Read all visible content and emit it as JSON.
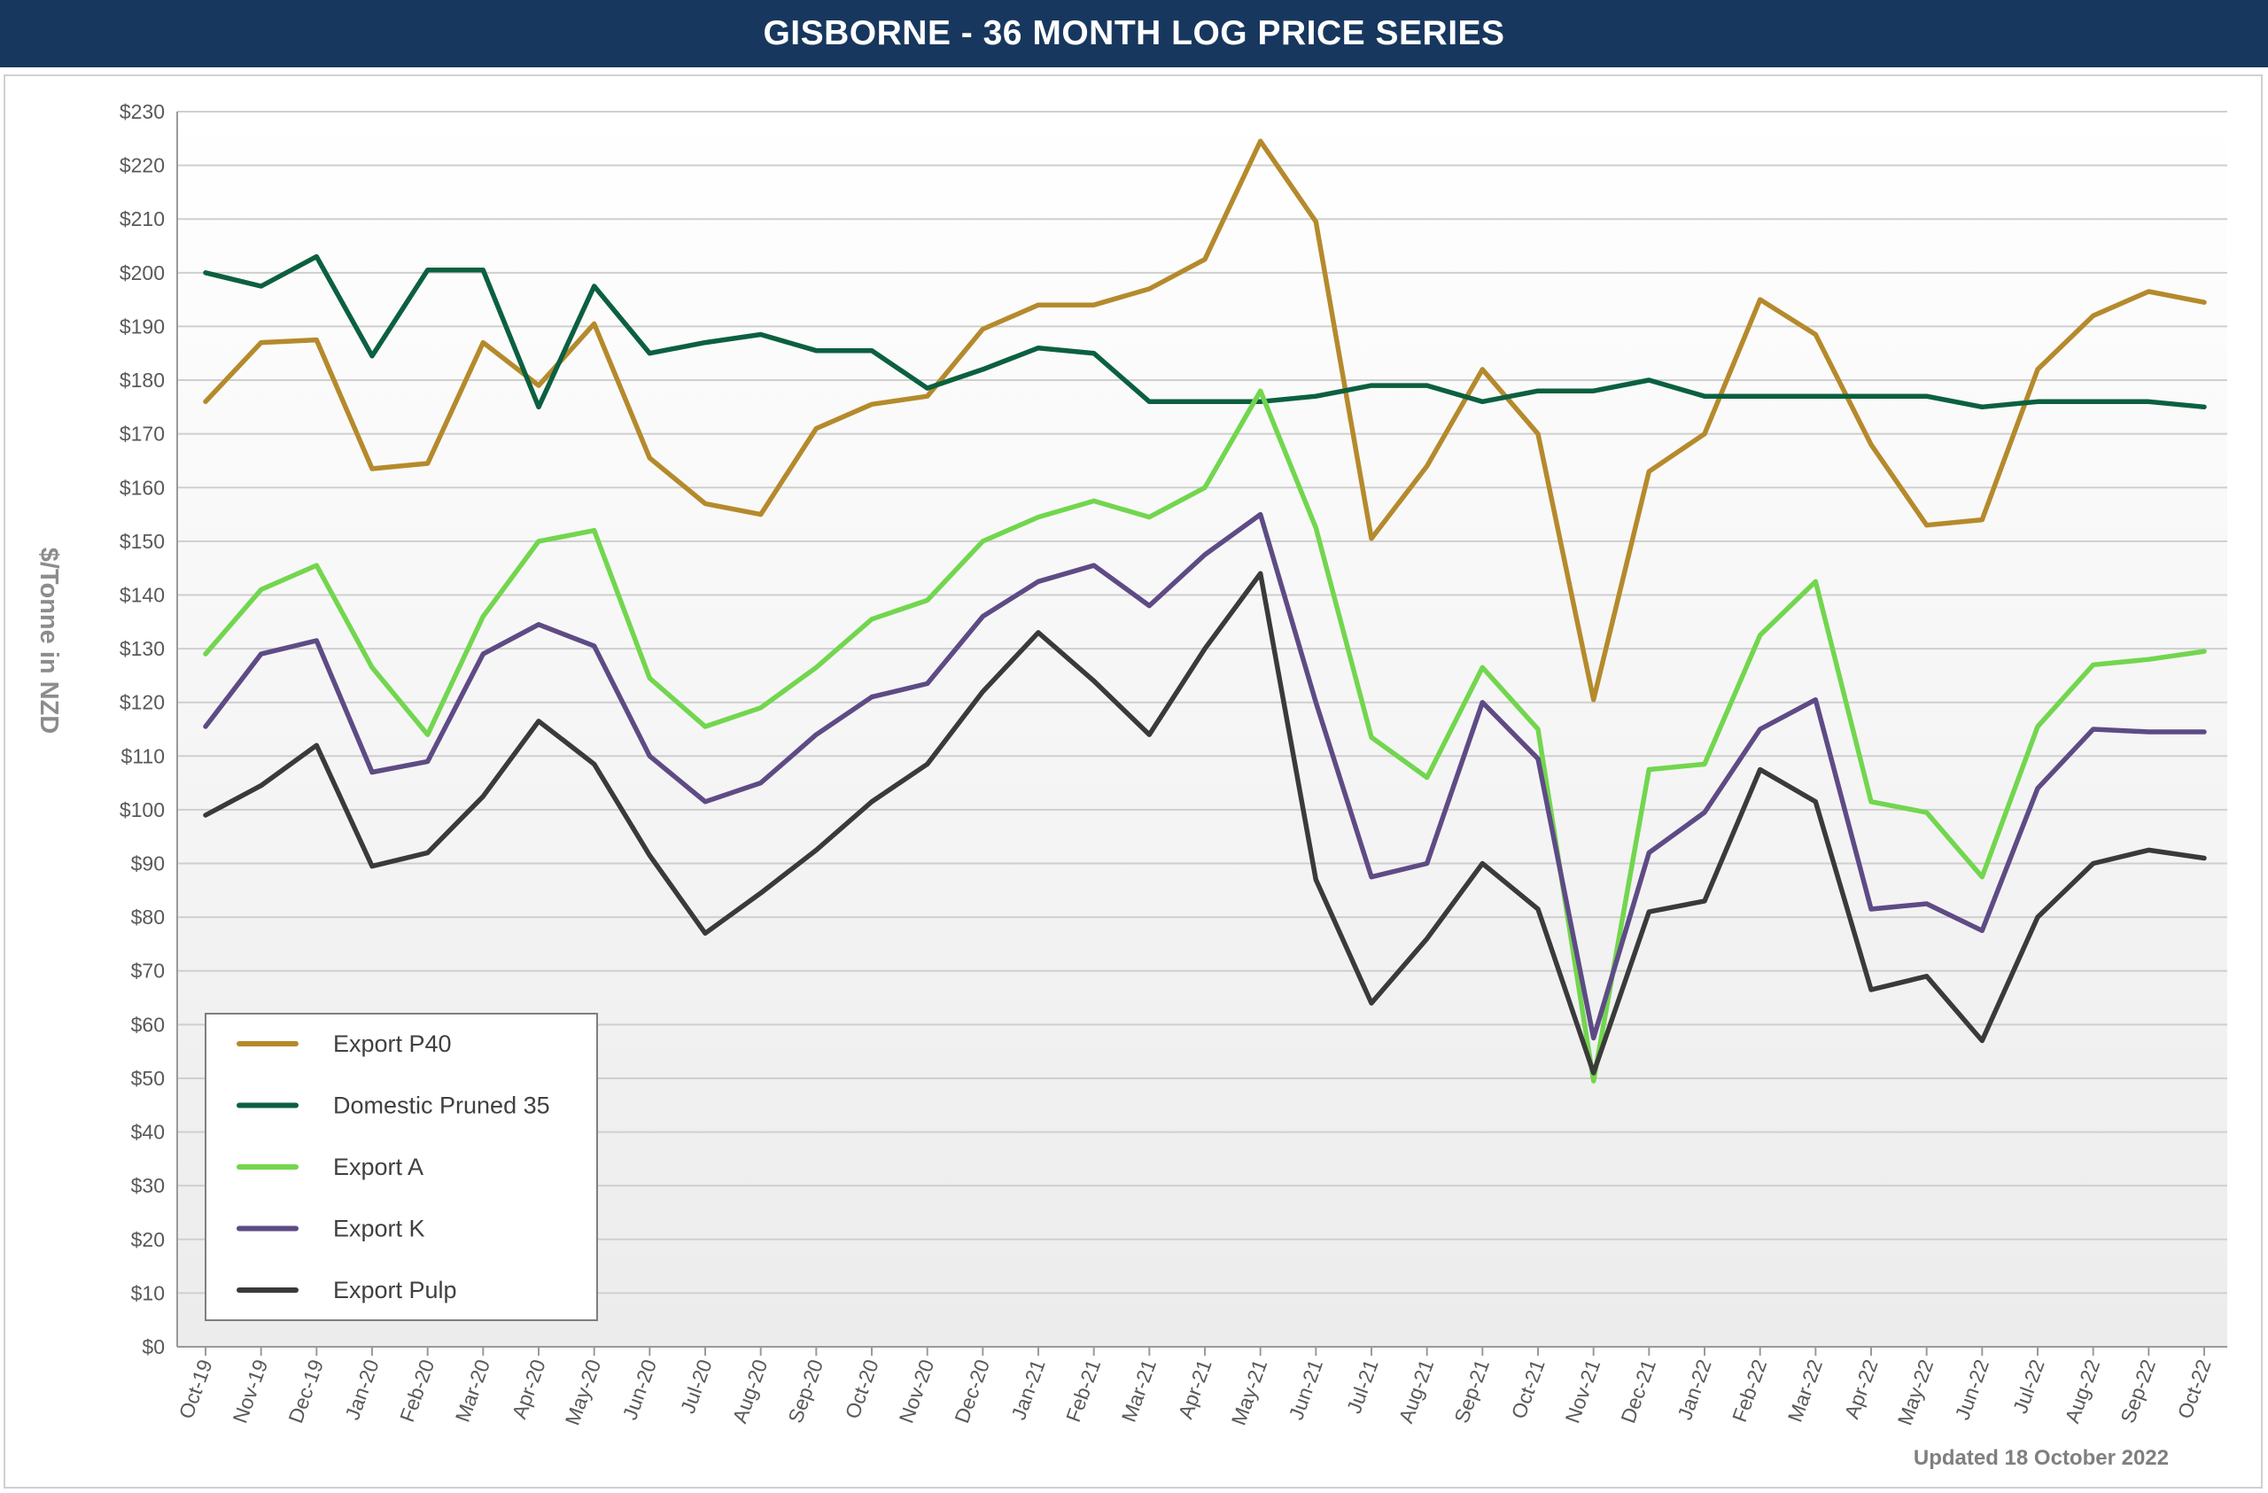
{
  "title": "GISBORNE - 36 MONTH LOG PRICE SERIES",
  "footer": "Updated 18 October 2022",
  "chart_data": {
    "type": "line",
    "title": "GISBORNE - 36 MONTH LOG PRICE SERIES",
    "xlabel": "",
    "ylabel": "$/Tonne in NZD",
    "ylim": [
      0,
      230
    ],
    "ytick_step": 10,
    "ytick_prefix": "$",
    "grid": true,
    "legend_position": "bottom-left",
    "categories": [
      "Oct-19",
      "Nov-19",
      "Dec-19",
      "Jan-20",
      "Feb-20",
      "Mar-20",
      "Apr-20",
      "May-20",
      "Jun-20",
      "Jul-20",
      "Aug-20",
      "Sep-20",
      "Oct-20",
      "Nov-20",
      "Dec-20",
      "Jan-21",
      "Feb-21",
      "Mar-21",
      "Apr-21",
      "May-21",
      "Jun-21",
      "Jul-21",
      "Aug-21",
      "Sep-21",
      "Oct-21",
      "Nov-21",
      "Dec-21",
      "Jan-22",
      "Feb-22",
      "Mar-22",
      "Apr-22",
      "May-22",
      "Jun-22",
      "Jul-22",
      "Aug-22",
      "Sep-22",
      "Oct-22"
    ],
    "series": [
      {
        "name": "Export P40",
        "color": "#b58a2c",
        "values": [
          176,
          187,
          187.5,
          163.5,
          164.5,
          187,
          179,
          190.5,
          165.5,
          157,
          155,
          171,
          175.5,
          177,
          189.5,
          194,
          194,
          197,
          202.5,
          224.5,
          209.5,
          150.5,
          164,
          182,
          170,
          120.5,
          163,
          170,
          195,
          188.5,
          168,
          153,
          154,
          182,
          192,
          196.5,
          194.5
        ]
      },
      {
        "name": "Domestic Pruned 35",
        "color": "#0b6040",
        "values": [
          200,
          197.5,
          203,
          184.5,
          200.5,
          200.5,
          175,
          197.5,
          185,
          187,
          188.5,
          185.5,
          185.5,
          178.5,
          182,
          186,
          185,
          176,
          176,
          176,
          177,
          179,
          179,
          176,
          178,
          178,
          180,
          177,
          177,
          177,
          177,
          177,
          175,
          176,
          176,
          176,
          175
        ]
      },
      {
        "name": "Export A",
        "color": "#72d64e",
        "values": [
          129,
          141,
          145.5,
          126.5,
          114,
          136,
          150,
          152,
          124.5,
          115.5,
          119,
          126.5,
          135.5,
          139,
          150,
          154.5,
          157.5,
          154.5,
          160,
          178,
          152.5,
          113.5,
          106,
          126.5,
          115,
          49.5,
          107.5,
          108.5,
          132.5,
          142.5,
          101.5,
          99.5,
          87.5,
          115.5,
          127,
          128,
          129.5
        ]
      },
      {
        "name": "Export K",
        "color": "#5e4b85",
        "values": [
          115.5,
          129,
          131.5,
          107,
          109,
          129,
          134.5,
          130.5,
          110,
          101.5,
          105,
          114,
          121,
          123.5,
          136,
          142.5,
          145.5,
          138,
          147.5,
          155,
          120,
          87.5,
          90,
          120,
          109.5,
          57.5,
          92,
          99.5,
          115,
          120.5,
          81.5,
          82.5,
          77.5,
          104,
          115,
          114.5,
          114.5
        ]
      },
      {
        "name": "Export Pulp",
        "color": "#3a3a3a",
        "values": [
          99,
          104.5,
          112,
          89.5,
          92,
          102.5,
          116.5,
          108.5,
          91.5,
          77,
          84.5,
          92.5,
          101.5,
          108.5,
          122,
          133,
          124,
          114,
          130,
          144,
          87,
          64,
          76,
          90,
          81.5,
          51,
          81,
          83,
          107.5,
          101.5,
          66.5,
          69,
          57,
          80,
          90,
          92.5,
          91
        ]
      }
    ]
  }
}
